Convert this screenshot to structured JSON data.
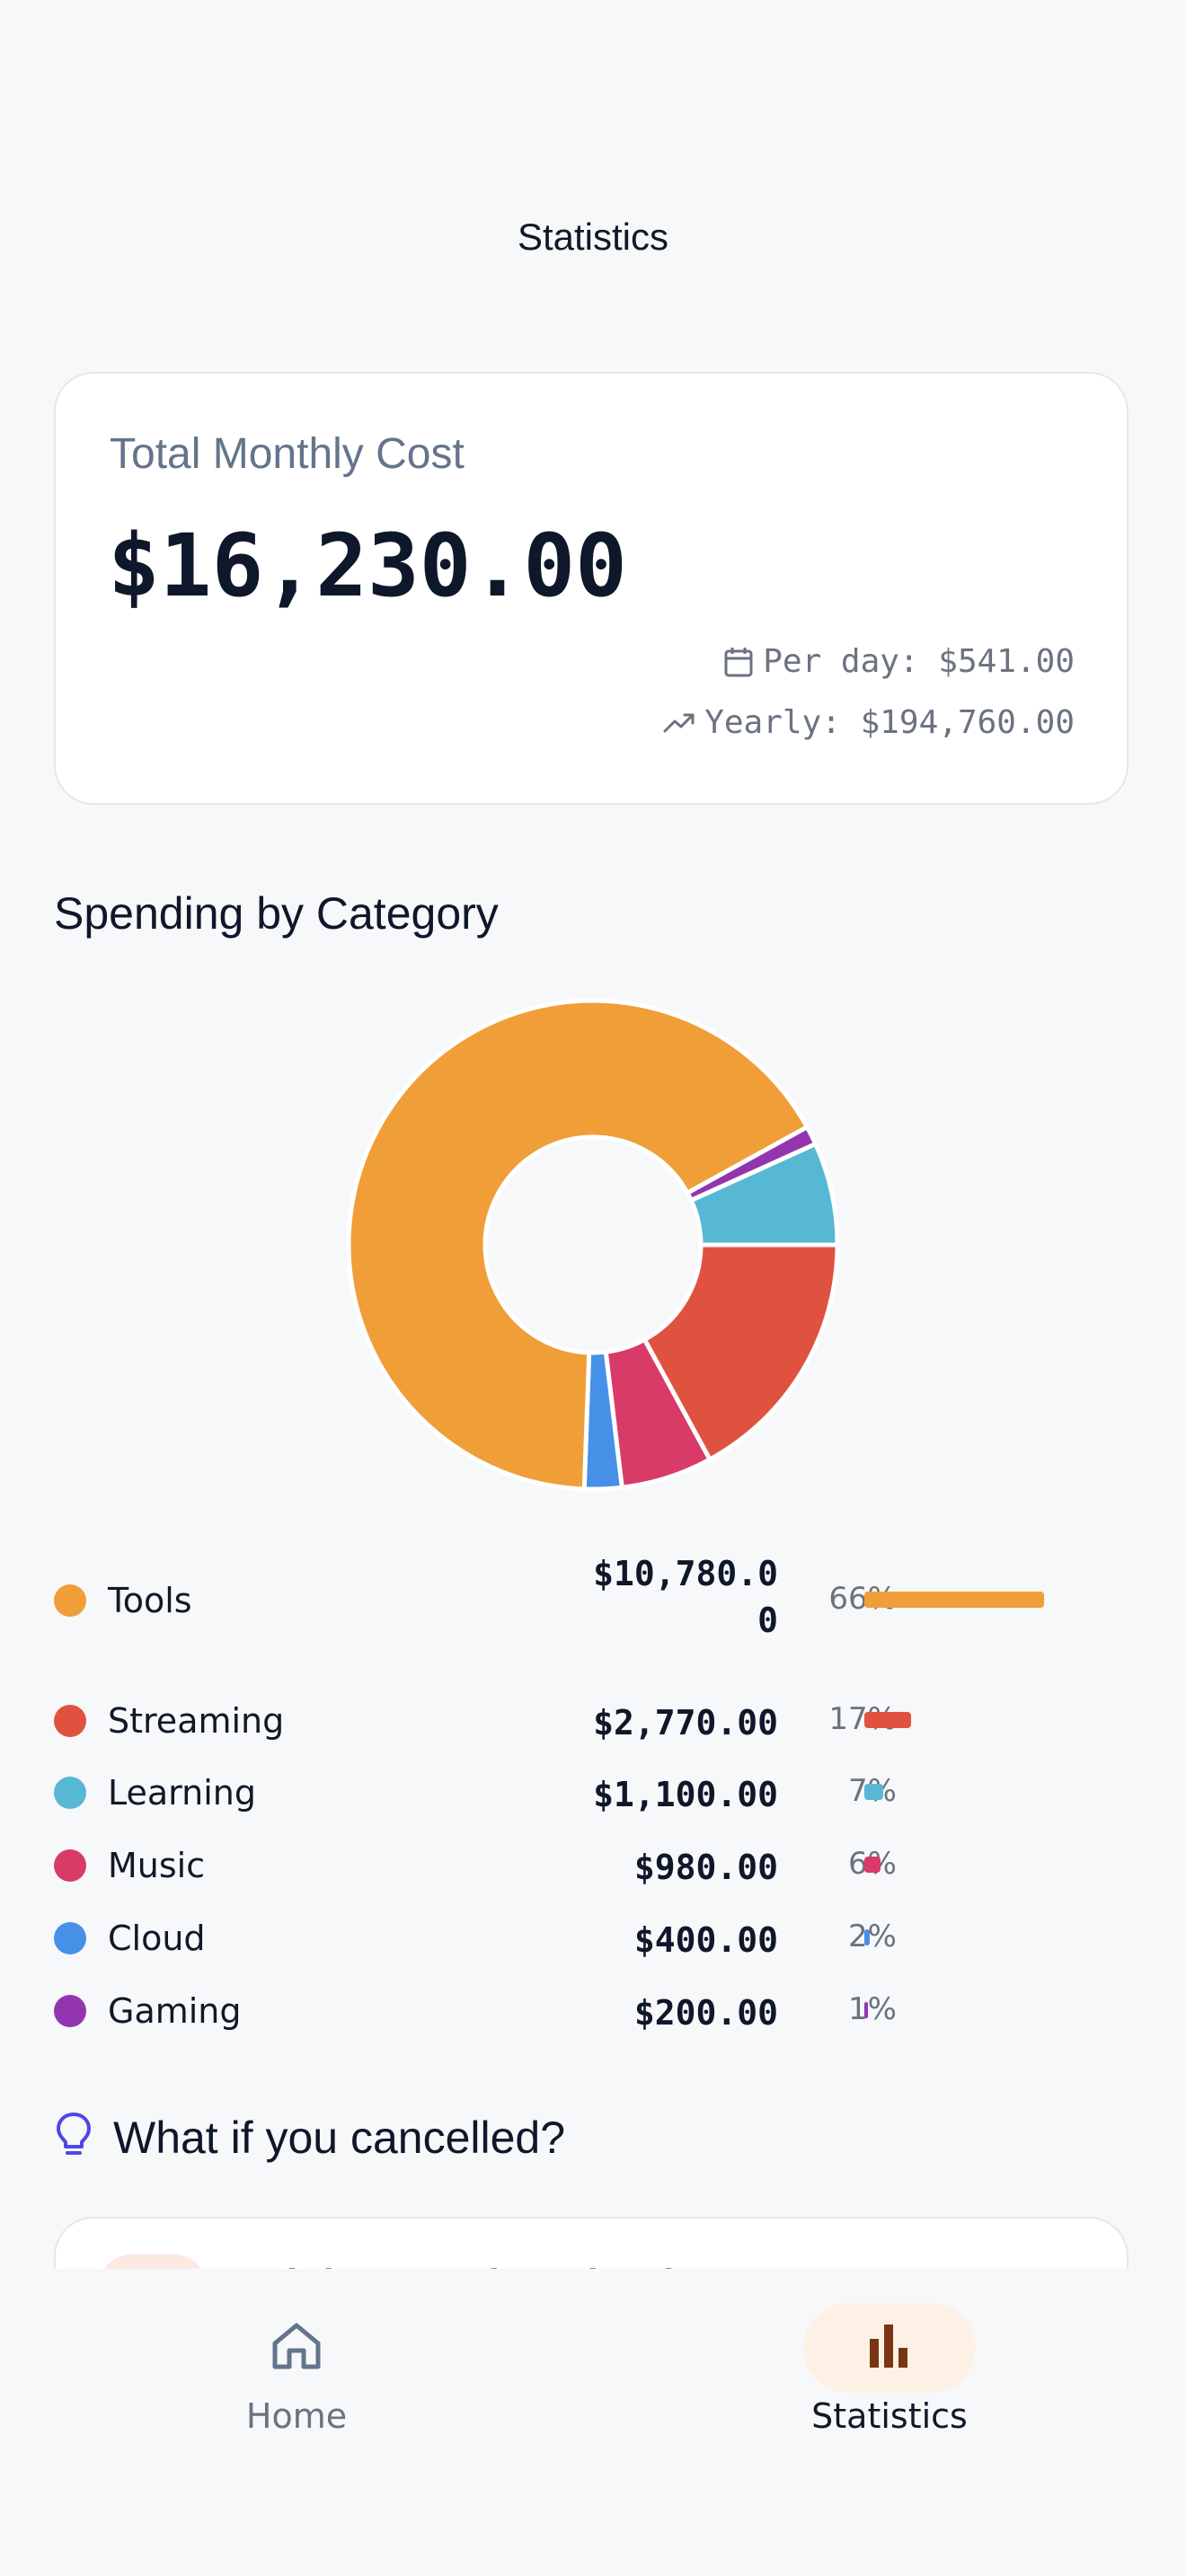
{
  "header": {
    "title": "Statistics"
  },
  "summary": {
    "label": "Total Monthly Cost",
    "total": "$16,230.00",
    "per_day": "Per day: $541.00",
    "yearly": "Yearly: $194,760.00"
  },
  "category_section": {
    "title": "Spending by Category"
  },
  "chart_data": {
    "type": "pie",
    "donut": true,
    "title": "",
    "categories": [
      "Tools",
      "Streaming",
      "Learning",
      "Music",
      "Cloud",
      "Gaming"
    ],
    "values": [
      10780,
      2770,
      1100,
      980,
      400,
      200
    ],
    "colors": [
      "#f09e38",
      "#e05240",
      "#56b8d3",
      "#d93b68",
      "#4690e8",
      "#9435b0"
    ],
    "amounts": [
      "$10,780.00",
      "$2,770.00",
      "$1,100.00",
      "$980.00",
      "$400.00",
      "$200.00"
    ],
    "percents": [
      "66%",
      "17%",
      "7%",
      "6%",
      "2%",
      "1%"
    ],
    "percent_values": [
      66,
      17,
      7,
      6,
      2,
      1
    ]
  },
  "cancel_section": {
    "title": "What if you cancelled?",
    "first_item_name": "Adobe Creative Cloud"
  },
  "nav": {
    "home_label": "Home",
    "stats_label": "Statistics",
    "active": "Statistics",
    "accent": "#7a3514"
  }
}
